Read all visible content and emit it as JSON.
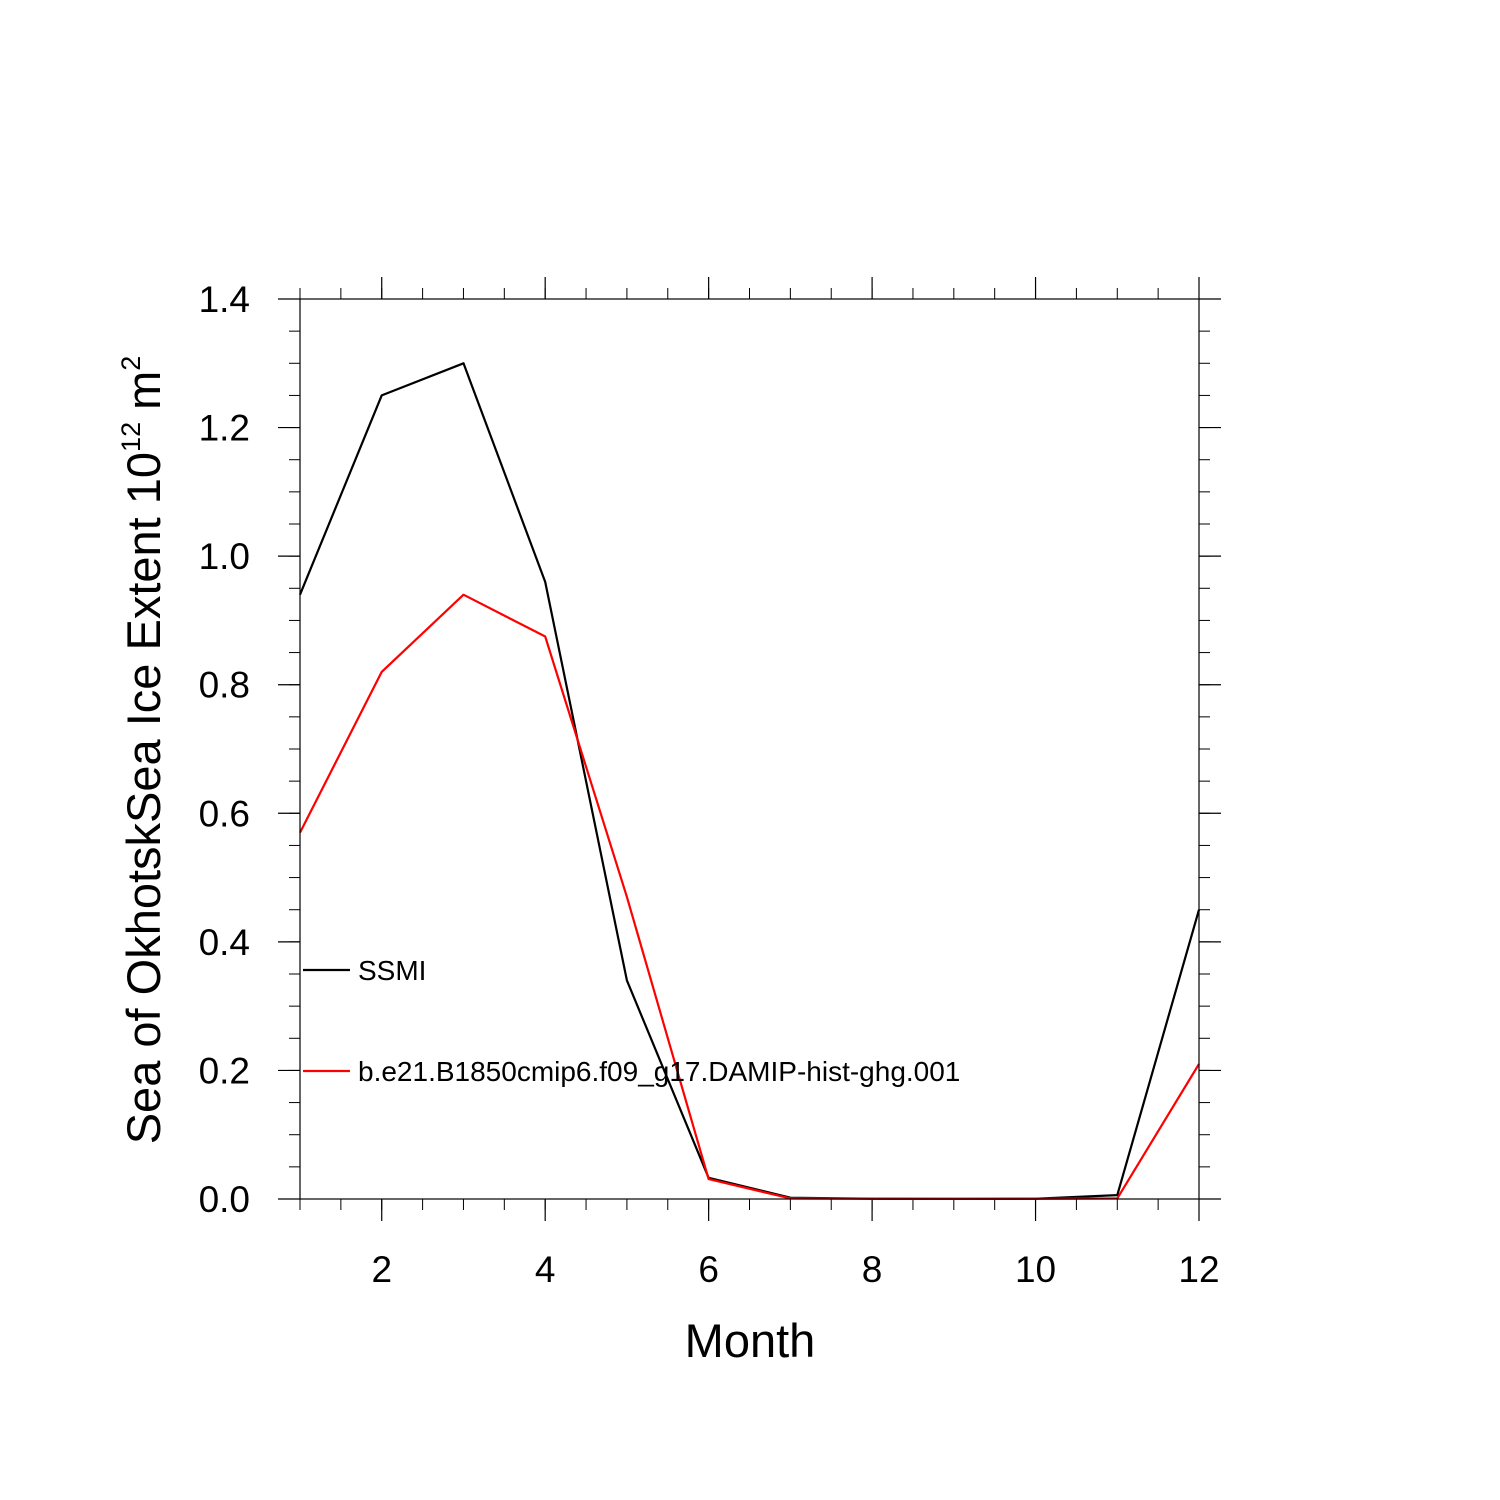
{
  "chart_data": {
    "type": "line",
    "title": "",
    "xlabel": "Month",
    "ylabel": {
      "base": "Sea of OkhotskSea Ice Extent 10",
      "exponent": "12",
      "unit": "m",
      "unit_exponent": "2"
    },
    "xlim": [
      1,
      12
    ],
    "ylim": [
      0,
      1.4
    ],
    "x_ticks": [
      {
        "value": 2,
        "label": "2"
      },
      {
        "value": 4,
        "label": "4"
      },
      {
        "value": 6,
        "label": "6"
      },
      {
        "value": 8,
        "label": "8"
      },
      {
        "value": 10,
        "label": "10"
      },
      {
        "value": 12,
        "label": "12"
      }
    ],
    "y_ticks": [
      {
        "value": 0.0,
        "label": "0.0"
      },
      {
        "value": 0.2,
        "label": "0.2"
      },
      {
        "value": 0.4,
        "label": "0.4"
      },
      {
        "value": 0.6,
        "label": "0.6"
      },
      {
        "value": 0.8,
        "label": "0.8"
      },
      {
        "value": 1.0,
        "label": "1.0"
      },
      {
        "value": 1.2,
        "label": "1.2"
      },
      {
        "value": 1.4,
        "label": "1.4"
      }
    ],
    "grid": false,
    "legend_position": "inside-left",
    "x": [
      1,
      2,
      3,
      4,
      5,
      6,
      7,
      8,
      9,
      10,
      11,
      12
    ],
    "series": [
      {
        "name": "SSMI",
        "color": "#000000",
        "values": [
          0.94,
          1.25,
          1.3,
          0.96,
          0.34,
          0.033,
          0.002,
          0.0005,
          0.0003,
          0.0005,
          0.006,
          0.45
        ]
      },
      {
        "name": "b.e21.B1850cmip6.f09_g17.DAMIP-hist-ghg.001",
        "color": "#ff0000",
        "values": [
          0.57,
          0.82,
          0.94,
          0.875,
          0.47,
          0.031,
          0.001,
          0.0003,
          0.0002,
          0.0003,
          0.001,
          0.21
        ]
      }
    ]
  }
}
